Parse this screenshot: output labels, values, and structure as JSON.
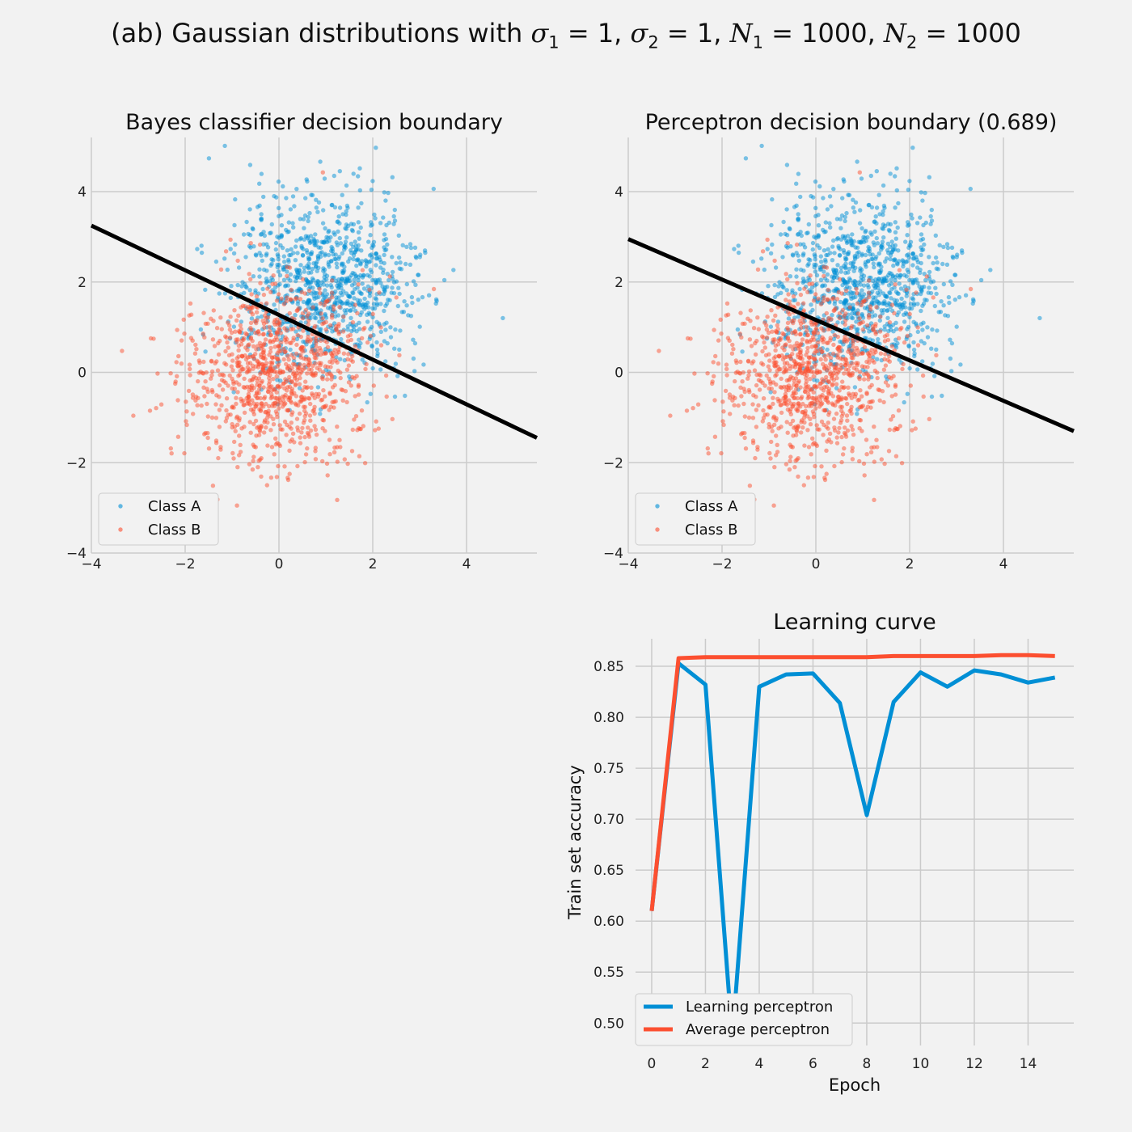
{
  "figure": {
    "suptitle": {
      "prefix": "(ab) Gaussian distributions with ",
      "sigma_symbol": "σ",
      "n_symbol": "N",
      "sub1": "1",
      "sub2": "2",
      "sigma1": "1",
      "sigma2": "1",
      "n1": "1000",
      "n2": "1000"
    }
  },
  "colors": {
    "class_a": "#008fd5",
    "class_b": "#fc4f30",
    "boundary": "#000000",
    "background": "#f2f2f2",
    "grid": "#cbcbcb"
  },
  "chart_data": [
    {
      "type": "scatter",
      "title": "Bayes classifier decision boundary",
      "xlim": [
        -4,
        5.5
      ],
      "ylim": [
        -4,
        5.2
      ],
      "xticks": [
        "−4",
        "−2",
        "0",
        "2",
        "4"
      ],
      "xtick_values": [
        -4,
        -2,
        0,
        2,
        4
      ],
      "yticks": [
        "−4",
        "−2",
        "0",
        "2",
        "4"
      ],
      "ytick_values": [
        -4,
        -2,
        0,
        2,
        4
      ],
      "grid": true,
      "legend_position": "lower-left",
      "series": [
        {
          "name": "Class A",
          "distribution": "gaussian",
          "mean": [
            1,
            2
          ],
          "sigma": 1,
          "n": 1000,
          "color": "#008fd5"
        },
        {
          "name": "Class B",
          "distribution": "gaussian",
          "mean": [
            0,
            0
          ],
          "sigma": 1,
          "n": 1000,
          "color": "#fc4f30"
        }
      ],
      "boundary": {
        "points": [
          [
            -4,
            3.25
          ],
          [
            5.5,
            -1.45
          ]
        ]
      }
    },
    {
      "type": "scatter",
      "title": "Perceptron decision boundary (0.689)",
      "xlim": [
        -4,
        5.5
      ],
      "ylim": [
        -4,
        5.2
      ],
      "xticks": [
        "−4",
        "−2",
        "0",
        "2",
        "4"
      ],
      "xtick_values": [
        -4,
        -2,
        0,
        2,
        4
      ],
      "yticks": [
        "−4",
        "−2",
        "0",
        "2",
        "4"
      ],
      "ytick_values": [
        -4,
        -2,
        0,
        2,
        4
      ],
      "grid": true,
      "legend_position": "lower-left",
      "series": [
        {
          "name": "Class A",
          "distribution": "gaussian",
          "mean": [
            1,
            2
          ],
          "sigma": 1,
          "n": 1000,
          "color": "#008fd5"
        },
        {
          "name": "Class B",
          "distribution": "gaussian",
          "mean": [
            0,
            0
          ],
          "sigma": 1,
          "n": 1000,
          "color": "#fc4f30"
        }
      ],
      "boundary": {
        "points": [
          [
            -4,
            2.95
          ],
          [
            5.5,
            -1.3
          ]
        ]
      }
    },
    {
      "type": "line",
      "title": "Learning curve",
      "xlabel": "Epoch",
      "ylabel": "Train set accuracy",
      "xlim": [
        -0.6,
        15.7
      ],
      "ylim": [
        0.478,
        0.877
      ],
      "xticks": [
        "0",
        "2",
        "4",
        "6",
        "8",
        "10",
        "12",
        "14"
      ],
      "xtick_values": [
        0,
        2,
        4,
        6,
        8,
        10,
        12,
        14
      ],
      "yticks": [
        "0.50",
        "0.55",
        "0.60",
        "0.65",
        "0.70",
        "0.75",
        "0.80",
        "0.85"
      ],
      "ytick_values": [
        0.5,
        0.55,
        0.6,
        0.65,
        0.7,
        0.75,
        0.8,
        0.85
      ],
      "grid": true,
      "legend_position": "lower-left",
      "x": [
        0,
        1,
        2,
        3,
        4,
        5,
        6,
        7,
        8,
        9,
        10,
        11,
        12,
        13,
        14,
        15
      ],
      "series": [
        {
          "name": "Learning perceptron",
          "color": "#008fd5",
          "values": [
            0.61,
            0.853,
            0.832,
            0.485,
            0.83,
            0.842,
            0.843,
            0.814,
            0.704,
            0.815,
            0.844,
            0.83,
            0.846,
            0.842,
            0.834,
            0.839
          ]
        },
        {
          "name": "Average perceptron",
          "color": "#fc4f30",
          "values": [
            0.61,
            0.858,
            0.859,
            0.859,
            0.859,
            0.859,
            0.859,
            0.859,
            0.859,
            0.86,
            0.86,
            0.86,
            0.86,
            0.861,
            0.861,
            0.86
          ]
        }
      ]
    }
  ]
}
